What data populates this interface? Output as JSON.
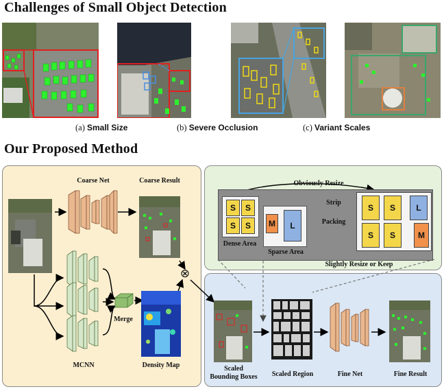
{
  "challenges": {
    "title": "Challenges of Small Object Detection",
    "captions": [
      {
        "tag": "(a)",
        "text": "Small Size"
      },
      {
        "tag": "(b)",
        "text": "Severe Occlusion"
      },
      {
        "tag": "(c)",
        "text": "Variant Scales"
      }
    ]
  },
  "method": {
    "title": "Our Proposed Method",
    "coarse_net": "Coarse Net",
    "coarse_result": "Coarse Result",
    "mcnn": "MCNN",
    "merge": "Merge",
    "density_map": "Density Map",
    "multiply_symbol": "⊗",
    "scaled_bounding_boxes": [
      "Scaled",
      "Bounding Boxes"
    ],
    "scaled_region": "Scaled Region",
    "fine_net": "Fine Net",
    "fine_result": "Fine Result"
  },
  "packing": {
    "obviously_resize": "Obviously Resize",
    "strip_packing": [
      "Strip",
      "Packing"
    ],
    "dense_area": "Dense Area",
    "sparse_area": "Sparse Area",
    "slightly_resize": "Slightly Resize or Keep",
    "box_s": "S",
    "box_m": "M",
    "box_l": "L"
  },
  "colors": {
    "left_panel_bg": "#fcefd0",
    "green_panel_bg": "#e6f2dc",
    "blue_panel_bg": "#dbe7f4",
    "net_block": "#e9b88f",
    "mcnn_block": "#d7e7c9",
    "s_box": "#f4d64a",
    "m_box": "#f0904a",
    "l_box": "#8eb1e2",
    "detection_green": "#22ee22",
    "red_box": "#e02020",
    "blue_box": "#4a8fe0",
    "yellow_box": "#e8d21c"
  }
}
